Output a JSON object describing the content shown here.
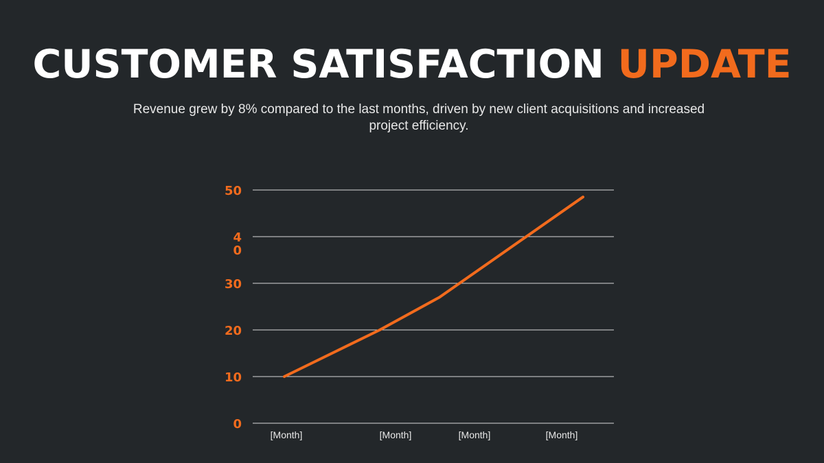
{
  "slide": {
    "title_main": "CUSTOMER SATISFACTION",
    "title_accent": "UPDATE",
    "subtitle": "Revenue grew by 8% compared to the last months, driven by new client acquisitions and increased project efficiency."
  },
  "colors": {
    "background": "#23272a",
    "accent": "#f26b1d",
    "gridline": "#d9d9d9",
    "text": "#ffffff"
  },
  "chart_data": {
    "type": "line",
    "categories": [
      "[Month]",
      "[Month]",
      "[Month]",
      "[Month]"
    ],
    "series": [
      {
        "values": [
          10,
          20,
          27,
          48.5
        ]
      }
    ],
    "yticks": [
      "0",
      "10",
      "20",
      "30",
      "4\n0",
      "50"
    ],
    "ylim": [
      0,
      50
    ],
    "grid": true,
    "title": "",
    "xlabel": "",
    "ylabel": ""
  }
}
